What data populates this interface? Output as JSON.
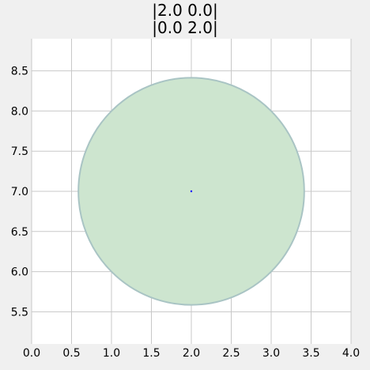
{
  "chart_data": {
    "type": "scatter",
    "title_lines": [
      "|2.0 0.0|",
      "|0.0 2.0|"
    ],
    "xlabel": "",
    "ylabel": "",
    "xlim": [
      0.0,
      4.0
    ],
    "ylim": [
      5.1,
      8.9
    ],
    "xticks": [
      "0.0",
      "0.5",
      "1.0",
      "1.5",
      "2.0",
      "2.5",
      "3.0",
      "3.5",
      "4.0"
    ],
    "yticks": [
      "5.5",
      "6.0",
      "6.5",
      "7.0",
      "7.5",
      "8.0",
      "8.5"
    ],
    "grid": true,
    "points": [
      {
        "x": 2.0,
        "y": 7.0
      }
    ],
    "ellipse": {
      "center": [
        2.0,
        7.0
      ],
      "radius_x": 1.414,
      "radius_y": 1.414,
      "fill_color": "#cde5cf",
      "edge_color": "#a9c4c4"
    },
    "point_color": "#0000ff",
    "plot_background": "#ffffff",
    "figure_background": "#f0f0f0",
    "grid_color": "#c8c8c8"
  }
}
